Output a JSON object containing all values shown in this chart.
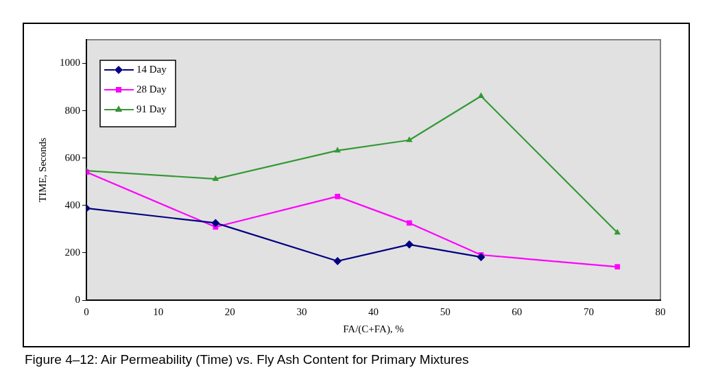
{
  "chart_data": {
    "type": "line",
    "xlabel": "FA/(C+FA), %",
    "ylabel": "TIME, Seconds",
    "annotations": [
      "Figure 4–12: Air Permeability (Time) vs. Fly Ash Content for Primary Mixtures"
    ],
    "xlim": [
      0,
      80
    ],
    "xticks": [
      0,
      10,
      20,
      30,
      40,
      50,
      60,
      70,
      80
    ],
    "ylim": [
      0,
      1100
    ],
    "yticks": [
      0,
      200,
      400,
      600,
      800,
      1000
    ],
    "grid": false,
    "legend": "top left",
    "line_style": "solid",
    "series": [
      {
        "name": "14 Day",
        "color": "#000080",
        "marker": "diamond",
        "x": [
          0,
          18,
          35,
          45,
          55
        ],
        "values": [
          388,
          326,
          165,
          235,
          182
        ]
      },
      {
        "name": "28 Day",
        "color": "#ff00ff",
        "marker": "square",
        "x": [
          0,
          18,
          35,
          45,
          55,
          74
        ],
        "values": [
          541,
          309,
          438,
          326,
          191,
          141
        ]
      },
      {
        "name": "91 Day",
        "color": "#339933",
        "marker": "triangle",
        "x": [
          0,
          18,
          35,
          45,
          55,
          74
        ],
        "values": [
          547,
          512,
          632,
          676,
          862,
          285
        ]
      }
    ]
  }
}
